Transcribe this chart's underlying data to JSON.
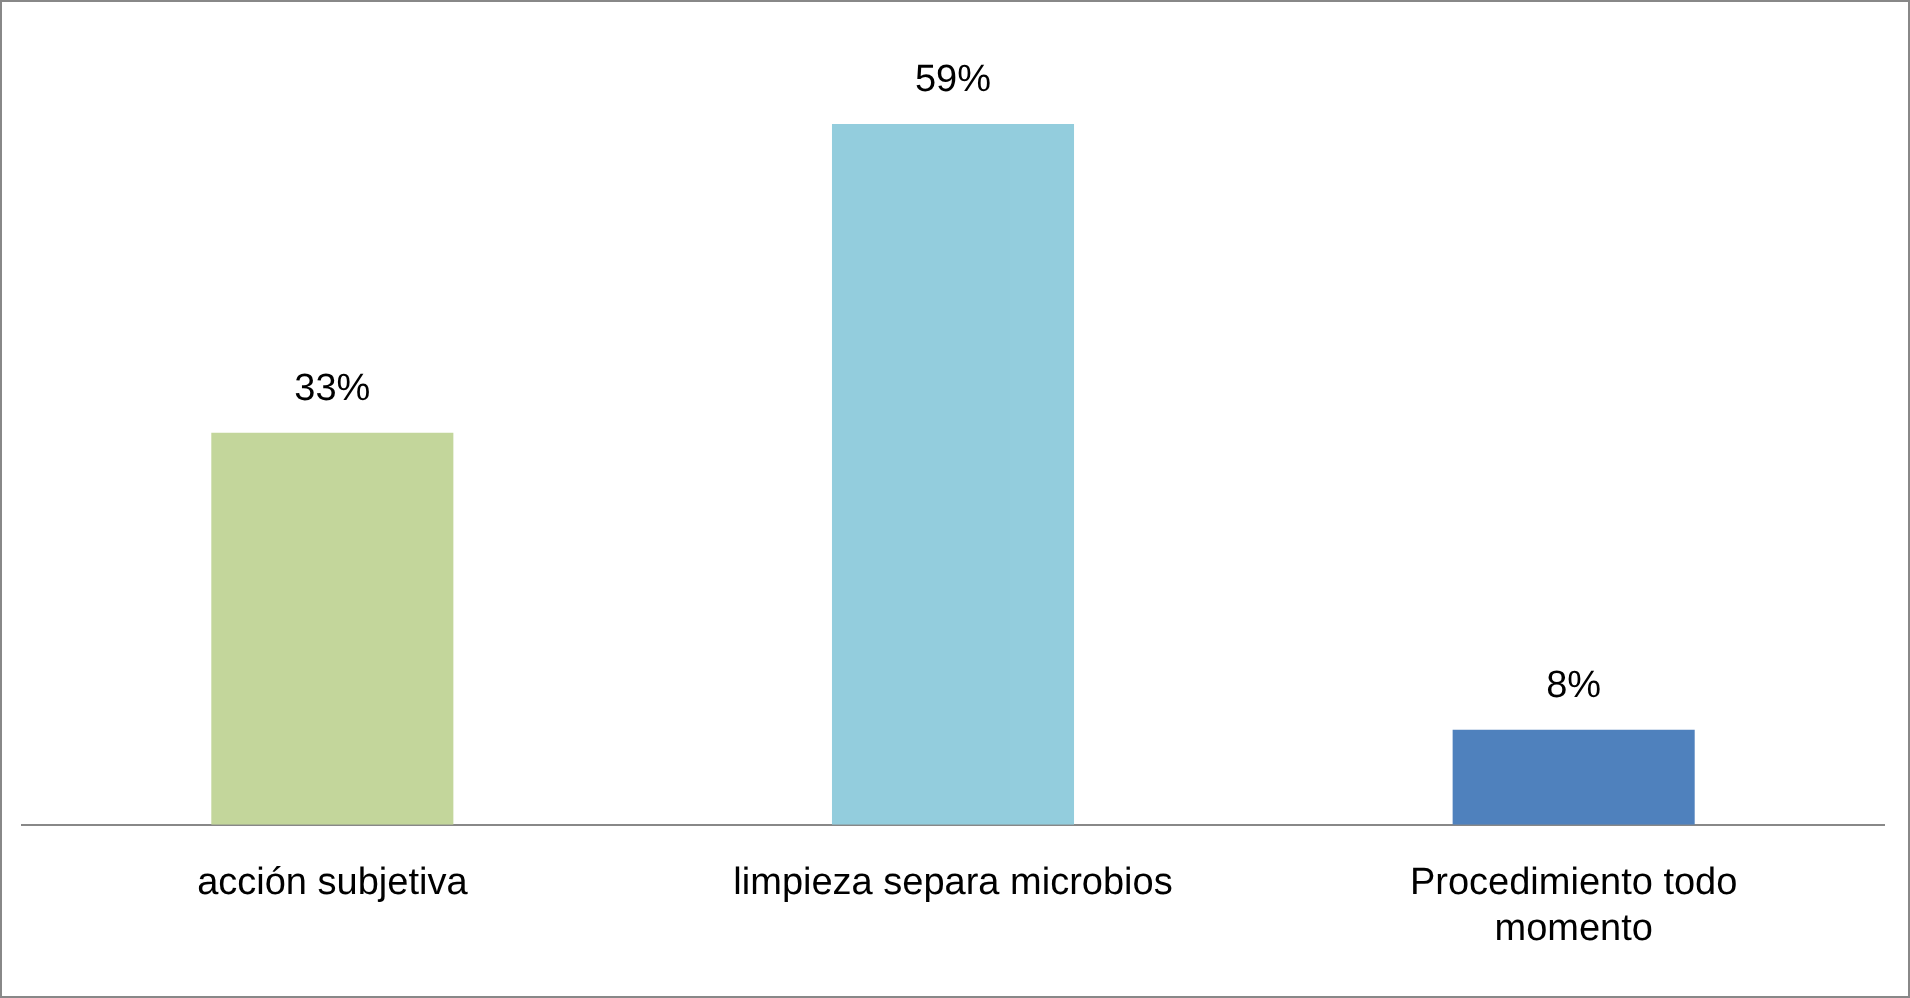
{
  "chart_data": {
    "type": "bar",
    "categories": [
      "acción subjetiva",
      "limpieza separa microbios",
      "Procedimiento todo momento"
    ],
    "values": [
      33,
      59,
      8
    ],
    "colors": [
      "#c3d69b",
      "#93cddd",
      "#4f81bd"
    ],
    "value_labels": [
      "33%",
      "59%",
      "8%"
    ],
    "grid": false,
    "legend": false
  }
}
